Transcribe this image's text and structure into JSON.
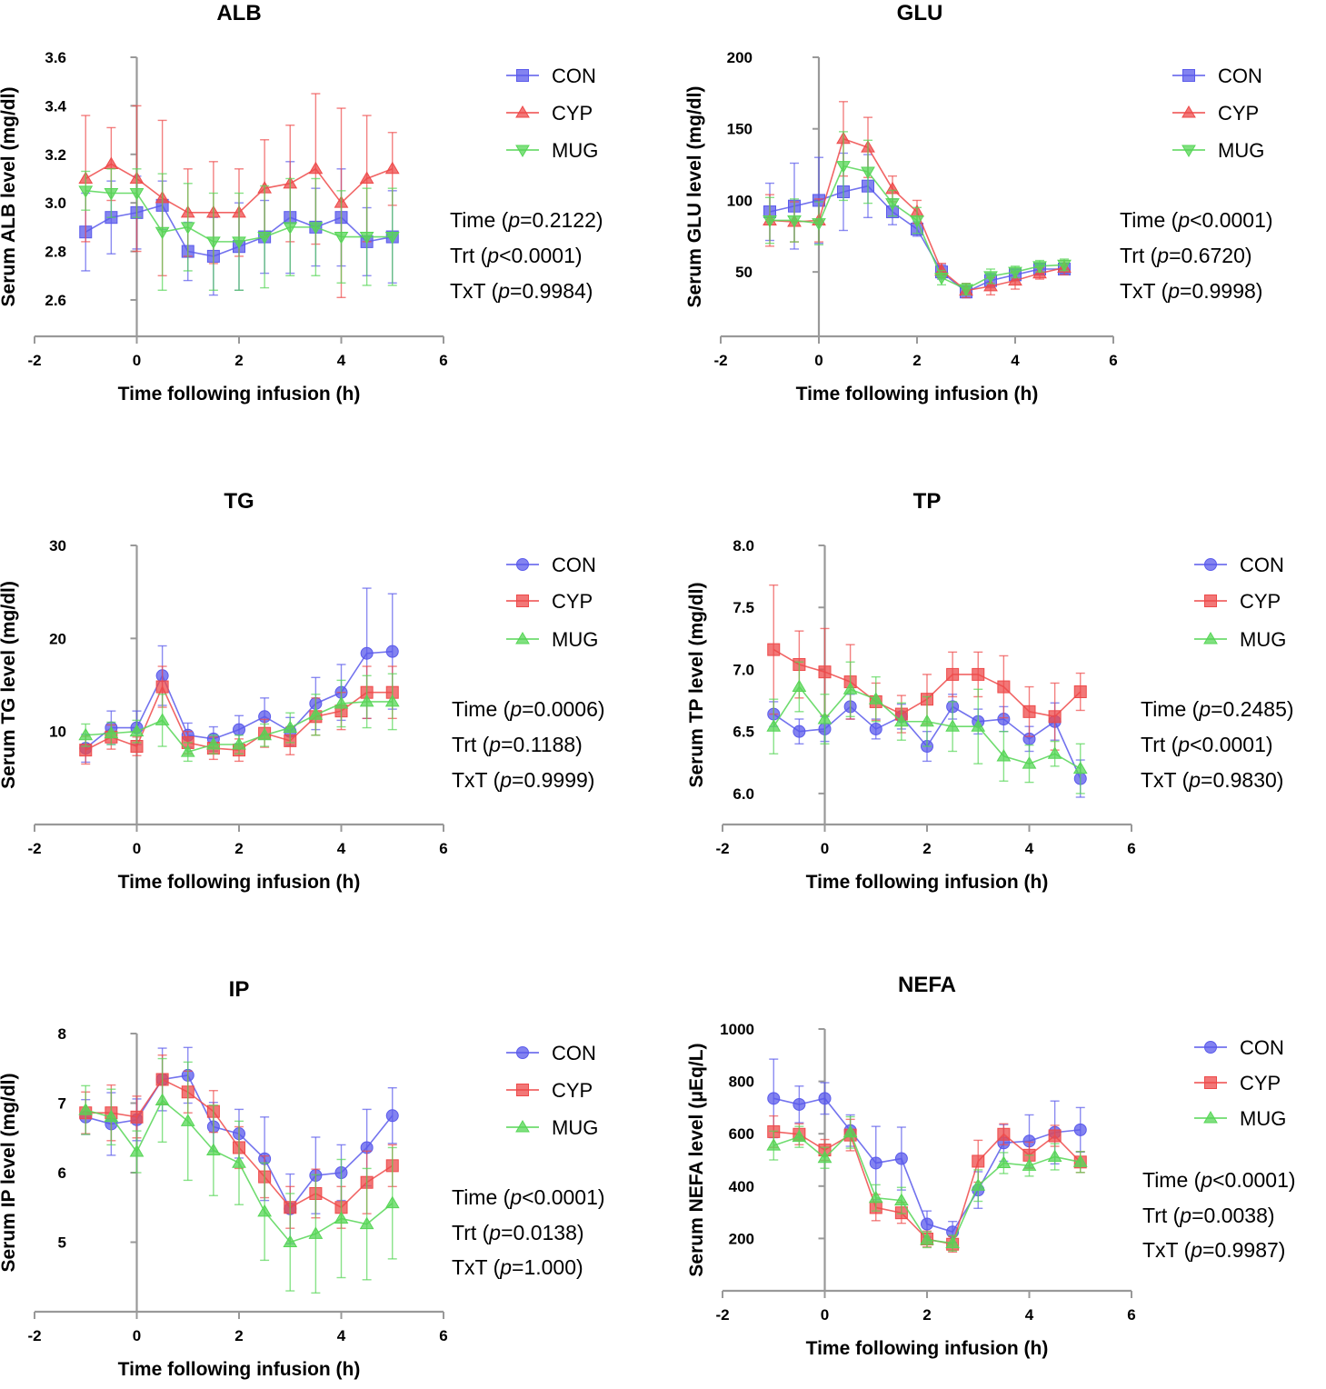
{
  "colors": {
    "CON": "#5a5aeb",
    "CYP": "#ee4a4a",
    "MUG": "#56d656"
  },
  "chart_data": [
    {
      "type": "line",
      "title": "ALB",
      "xlabel": "Time following infusion (h)",
      "ylabel": "Serum ALB level (mg/dl)",
      "xlim": [
        -2,
        6
      ],
      "ylim": [
        2.45,
        3.6
      ],
      "xticks": [
        "-2",
        "0",
        "2",
        "4",
        "6"
      ],
      "yticks": [
        "2.6",
        "2.8",
        "3.0",
        "3.2",
        "3.4",
        "3.6"
      ],
      "x": [
        -1,
        -0.5,
        0,
        0.5,
        1,
        1.5,
        2,
        2.5,
        3,
        3.5,
        4,
        4.5,
        5
      ],
      "series": [
        {
          "name": "CON",
          "marker": "square",
          "values": [
            2.88,
            2.94,
            2.96,
            2.99,
            2.8,
            2.78,
            2.82,
            2.86,
            2.94,
            2.9,
            2.94,
            2.84,
            2.86
          ],
          "err": [
            0.16,
            0.15,
            0.15,
            0.1,
            0.12,
            0.16,
            0.18,
            0.15,
            0.23,
            0.16,
            0.2,
            0.14,
            0.19
          ]
        },
        {
          "name": "CYP",
          "marker": "triangle-up",
          "values": [
            3.1,
            3.16,
            3.1,
            3.02,
            2.96,
            2.96,
            2.96,
            3.06,
            3.08,
            3.14,
            3.0,
            3.1,
            3.14
          ],
          "err": [
            0.26,
            0.15,
            0.3,
            0.32,
            0.18,
            0.21,
            0.18,
            0.2,
            0.24,
            0.31,
            0.39,
            0.26,
            0.15
          ]
        },
        {
          "name": "MUG",
          "marker": "triangle-down",
          "values": [
            3.05,
            3.04,
            3.04,
            2.88,
            2.9,
            2.84,
            2.84,
            2.86,
            2.9,
            2.9,
            2.86,
            2.86,
            2.86
          ],
          "err": [
            0.08,
            0.1,
            0.1,
            0.24,
            0.18,
            0.2,
            0.2,
            0.21,
            0.2,
            0.2,
            0.19,
            0.2,
            0.2
          ]
        }
      ],
      "legend": [
        "CON",
        "CYP",
        "MUG"
      ],
      "stats": [
        "Time (p=0.2122)",
        "Trt (p<0.0001)",
        "TxT (p=0.9984)"
      ]
    },
    {
      "type": "line",
      "title": "GLU",
      "xlabel": "Time following infusion (h)",
      "ylabel": "Serum GLU level (mg/dl)",
      "xlim": [
        -2,
        6
      ],
      "ylim": [
        5,
        200
      ],
      "xticks": [
        "-2",
        "0",
        "2",
        "4",
        "6"
      ],
      "yticks": [
        "50",
        "100",
        "150",
        "200"
      ],
      "x": [
        -1,
        -0.5,
        0,
        0.5,
        1,
        1.5,
        2,
        2.5,
        3,
        3.5,
        4,
        4.5,
        5
      ],
      "series": [
        {
          "name": "CON",
          "marker": "square",
          "values": [
            92,
            96,
            100,
            106,
            110,
            92,
            80,
            50,
            36,
            44,
            48,
            52,
            52
          ],
          "err": [
            20,
            30,
            30,
            27,
            22,
            9,
            5,
            5,
            4,
            5,
            4,
            3,
            3
          ]
        },
        {
          "name": "CYP",
          "marker": "triangle-up",
          "values": [
            86,
            85,
            86,
            143,
            137,
            108,
            92,
            51,
            37,
            40,
            44,
            49,
            53
          ],
          "err": [
            18,
            14,
            15,
            26,
            21,
            9,
            8,
            5,
            5,
            6,
            6,
            4,
            5
          ]
        },
        {
          "name": "MUG",
          "marker": "triangle-down",
          "values": [
            86,
            86,
            84,
            124,
            120,
            98,
            86,
            46,
            38,
            47,
            50,
            54,
            55
          ],
          "err": [
            16,
            15,
            15,
            24,
            22,
            9,
            9,
            5,
            4,
            5,
            4,
            4,
            4
          ]
        }
      ],
      "legend": [
        "CON",
        "CYP",
        "MUG"
      ],
      "stats": [
        "Time (p<0.0001)",
        "Trt (p=0.6720)",
        "TxT (p=0.9998)"
      ]
    },
    {
      "type": "line",
      "title": "TG",
      "xlabel": "Time following infusion (h)",
      "ylabel": "Serum TG level (mg/dl)",
      "xlim": [
        -2,
        6
      ],
      "ylim": [
        0,
        30
      ],
      "xticks": [
        "-2",
        "0",
        "2",
        "4",
        "6"
      ],
      "yticks": [
        "10",
        "20",
        "30"
      ],
      "x": [
        -1,
        -0.5,
        0,
        0.5,
        1,
        1.5,
        2,
        2.5,
        3,
        3.5,
        4,
        4.5,
        5
      ],
      "series": [
        {
          "name": "CON",
          "marker": "circle",
          "values": [
            8.2,
            10.4,
            10.4,
            16.0,
            9.6,
            9.2,
            10.2,
            11.6,
            10.0,
            13.0,
            14.2,
            18.4,
            18.6
          ],
          "err": [
            1.5,
            1.8,
            1.8,
            3.2,
            1.3,
            1.3,
            1.5,
            2.0,
            1.5,
            2.8,
            3.0,
            7.0,
            6.2
          ]
        },
        {
          "name": "CYP",
          "marker": "square",
          "values": [
            8.0,
            9.4,
            8.4,
            14.8,
            8.8,
            8.2,
            8.0,
            9.8,
            9.0,
            11.6,
            12.2,
            14.2,
            14.2
          ],
          "err": [
            1.5,
            1.3,
            1.0,
            2.2,
            1.2,
            1.2,
            1.2,
            1.5,
            1.5,
            2.0,
            2.0,
            2.8,
            2.8
          ]
        },
        {
          "name": "MUG",
          "marker": "triangle-up",
          "values": [
            9.6,
            9.8,
            10.0,
            11.2,
            7.8,
            8.6,
            8.6,
            9.6,
            10.4,
            11.8,
            13.0,
            13.2,
            13.2
          ],
          "err": [
            1.2,
            1.2,
            1.2,
            2.8,
            1.0,
            1.0,
            1.0,
            1.2,
            1.6,
            2.2,
            2.5,
            2.8,
            3.0
          ]
        }
      ],
      "legend": [
        "CON",
        "CYP",
        "MUG"
      ],
      "stats": [
        "Time (p=0.0006)",
        "Trt (p=0.1188)",
        "TxT (p=0.9999)"
      ]
    },
    {
      "type": "line",
      "title": "TP",
      "xlabel": "Time following infusion (h)",
      "ylabel": "Serum TP level (mg/dl)",
      "xlim": [
        -2,
        6
      ],
      "ylim": [
        5.75,
        8.0
      ],
      "xticks": [
        "-2",
        "0",
        "2",
        "4",
        "6"
      ],
      "yticks": [
        "6.0",
        "6.5",
        "7.0",
        "7.5",
        "8.0"
      ],
      "x": [
        -1,
        -0.5,
        0,
        0.5,
        1,
        1.5,
        2,
        2.5,
        3,
        3.5,
        4,
        4.5,
        5
      ],
      "series": [
        {
          "name": "CON",
          "marker": "circle",
          "values": [
            6.64,
            6.5,
            6.52,
            6.7,
            6.52,
            6.62,
            6.38,
            6.7,
            6.58,
            6.6,
            6.44,
            6.58,
            6.12
          ],
          "err": [
            0.1,
            0.1,
            0.1,
            0.1,
            0.08,
            0.1,
            0.12,
            0.1,
            0.1,
            0.1,
            0.1,
            0.15,
            0.15
          ]
        },
        {
          "name": "CYP",
          "marker": "square",
          "values": [
            7.16,
            7.04,
            6.98,
            6.9,
            6.74,
            6.64,
            6.76,
            6.96,
            6.96,
            6.86,
            6.66,
            6.62,
            6.82
          ],
          "err": [
            0.52,
            0.27,
            0.35,
            0.3,
            0.15,
            0.15,
            0.2,
            0.18,
            0.18,
            0.25,
            0.2,
            0.27,
            0.15
          ]
        },
        {
          "name": "MUG",
          "marker": "triangle-up",
          "values": [
            6.54,
            6.86,
            6.6,
            6.84,
            6.76,
            6.58,
            6.58,
            6.54,
            6.54,
            6.3,
            6.24,
            6.32,
            6.2
          ],
          "err": [
            0.22,
            0.2,
            0.2,
            0.22,
            0.18,
            0.15,
            0.2,
            0.2,
            0.3,
            0.2,
            0.15,
            0.1,
            0.2
          ]
        }
      ],
      "legend": [
        "CON",
        "CYP",
        "MUG"
      ],
      "stats": [
        "Time (p=0.2485)",
        "Trt (p<0.0001)",
        "TxT (p=0.9830)"
      ]
    },
    {
      "type": "line",
      "title": "IP",
      "xlabel": "Time following infusion (h)",
      "ylabel": "Serum IP level (mg/dl)",
      "xlim": [
        -2,
        6
      ],
      "ylim": [
        4.0,
        8.0
      ],
      "xticks": [
        "-2",
        "0",
        "2",
        "4",
        "6"
      ],
      "yticks": [
        "5",
        "6",
        "7",
        "8"
      ],
      "x": [
        -1,
        -0.5,
        0,
        0.5,
        1,
        1.5,
        2,
        2.5,
        3,
        3.5,
        4,
        4.5,
        5
      ],
      "series": [
        {
          "name": "CON",
          "marker": "circle",
          "values": [
            6.8,
            6.7,
            6.76,
            7.34,
            7.4,
            6.66,
            6.56,
            6.2,
            5.48,
            5.96,
            6.0,
            6.36,
            6.82
          ],
          "err": [
            0.25,
            0.45,
            0.3,
            0.45,
            0.4,
            0.35,
            0.35,
            0.6,
            0.5,
            0.55,
            0.4,
            0.55,
            0.4
          ]
        },
        {
          "name": "CYP",
          "marker": "square",
          "values": [
            6.86,
            6.86,
            6.8,
            7.34,
            7.16,
            6.88,
            6.36,
            5.94,
            5.5,
            5.7,
            5.5,
            5.86,
            6.1
          ],
          "err": [
            0.3,
            0.4,
            0.3,
            0.35,
            0.3,
            0.3,
            0.3,
            0.3,
            0.3,
            0.35,
            0.3,
            0.45,
            0.3
          ]
        },
        {
          "name": "MUG",
          "marker": "triangle-up",
          "values": [
            6.9,
            6.8,
            6.3,
            7.04,
            6.74,
            6.32,
            6.14,
            5.44,
            5.0,
            5.12,
            5.34,
            5.26,
            5.56
          ],
          "err": [
            0.35,
            0.4,
            0.3,
            0.6,
            0.85,
            0.65,
            0.6,
            0.7,
            0.7,
            0.85,
            0.85,
            0.8,
            0.8
          ]
        }
      ],
      "legend": [
        "CON",
        "CYP",
        "MUG"
      ],
      "stats": [
        "Time (p<0.0001)",
        "Trt (p=0.0138)",
        "TxT (p=1.000)"
      ]
    },
    {
      "type": "line",
      "title": "NEFA",
      "xlabel": "Time following infusion (h)",
      "ylabel": "Serum NEFA level (μEq/L)",
      "xlim": [
        -2,
        6
      ],
      "ylim": [
        0,
        1000
      ],
      "xticks": [
        "-2",
        "0",
        "2",
        "4",
        "6"
      ],
      "yticks": [
        "200",
        "400",
        "600",
        "800",
        "1000"
      ],
      "x": [
        -1,
        -0.5,
        0,
        0.5,
        1,
        1.5,
        2,
        2.5,
        3,
        3.5,
        4,
        4.5,
        5
      ],
      "series": [
        {
          "name": "CON",
          "marker": "circle",
          "values": [
            735,
            712,
            735,
            612,
            488,
            505,
            255,
            225,
            385,
            565,
            572,
            605,
            615
          ],
          "err": [
            150,
            70,
            60,
            60,
            140,
            120,
            50,
            40,
            70,
            70,
            100,
            120,
            85
          ]
        },
        {
          "name": "CYP",
          "marker": "square",
          "values": [
            608,
            598,
            538,
            595,
            318,
            298,
            198,
            178,
            495,
            598,
            518,
            592,
            492
          ],
          "err": [
            60,
            40,
            40,
            60,
            50,
            40,
            30,
            30,
            80,
            40,
            50,
            40,
            40
          ]
        },
        {
          "name": "MUG",
          "marker": "triangle-up",
          "values": [
            555,
            588,
            508,
            605,
            355,
            345,
            195,
            182,
            402,
            488,
            478,
            512,
            492
          ],
          "err": [
            55,
            40,
            40,
            60,
            50,
            50,
            30,
            30,
            60,
            40,
            40,
            50,
            40
          ]
        }
      ],
      "legend": [
        "CON",
        "CYP",
        "MUG"
      ],
      "stats": [
        "Time (p<0.0001)",
        "Trt (p=0.0038)",
        "TxT (p=0.9987)"
      ]
    }
  ]
}
